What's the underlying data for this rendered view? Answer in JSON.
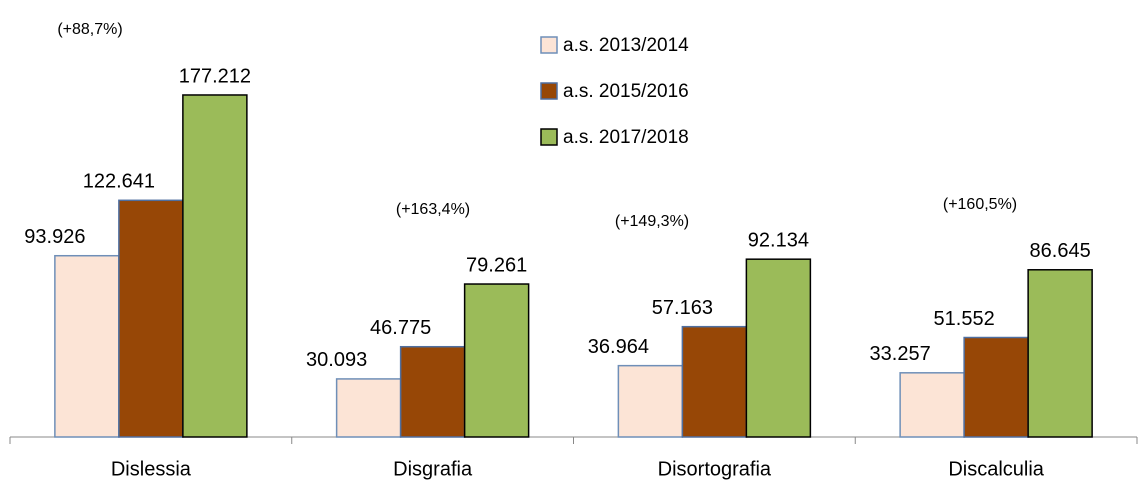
{
  "chart_data": {
    "type": "bar",
    "categories": [
      "Dislessia",
      "Disgrafia",
      "Disortografia",
      "Discalculia"
    ],
    "series": [
      {
        "name": "a.s. 2013/2014",
        "color": "#fce4d6",
        "border": "#6f8fb8",
        "values": [
          93926,
          30093,
          36964,
          33257
        ],
        "value_labels": [
          "93.926",
          "30.093",
          "36.964",
          "33.257"
        ]
      },
      {
        "name": "a.s. 2015/2016",
        "color": "#974706",
        "border": "#4f6fa0",
        "values": [
          122641,
          46775,
          57163,
          51552
        ],
        "value_labels": [
          "122.641",
          "46.775",
          "57.163",
          "51.552"
        ]
      },
      {
        "name": "a.s. 2017/2018",
        "color": "#9bbb59",
        "border": "#000000",
        "values": [
          177212,
          79261,
          92134,
          86645
        ],
        "value_labels": [
          "177.212",
          "79.261",
          "92.134",
          "86.645"
        ]
      }
    ],
    "annotations": [
      "(+88,7%)",
      "(+163,4%)",
      "(+149,3%)",
      "(+160,5%)"
    ],
    "ylim": [
      0,
      200000
    ],
    "legend": "top-center"
  }
}
